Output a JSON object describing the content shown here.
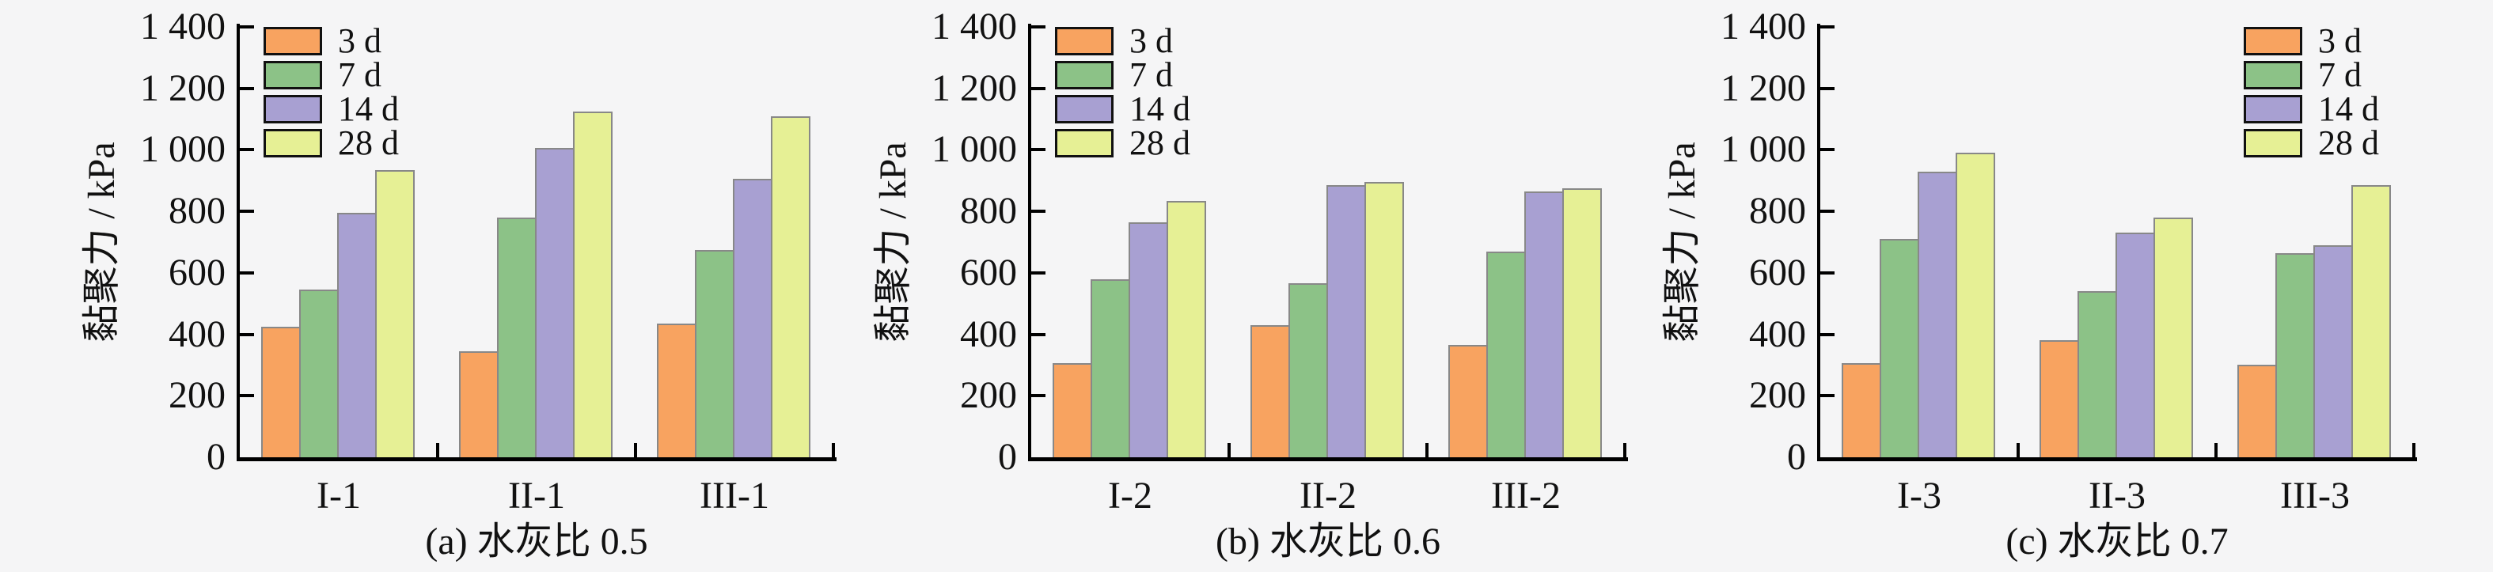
{
  "figure": {
    "background": "#f5f5f6",
    "text_color": "#111111",
    "axis_color": "#000000",
    "bar_border_color": "#888888",
    "legend_border_color": "#111111"
  },
  "chart_data": [
    {
      "type": "bar",
      "panel": "a",
      "caption": "(a) 水灰比 0.5",
      "ylabel": "黏聚力 / kPa",
      "ylim": [
        0,
        1400
      ],
      "ytick_step": 200,
      "ytick_labels": [
        "0",
        "200",
        "400",
        "600",
        "800",
        "1 000",
        "1 200",
        "1 400"
      ],
      "grid": false,
      "legend_position": "top-left",
      "categories": [
        "I-1",
        "II-1",
        "III-1"
      ],
      "series": [
        {
          "name": "3 d",
          "color": "#f8a360",
          "values": [
            425,
            345,
            435
          ]
        },
        {
          "name": "7 d",
          "color": "#8cc287",
          "values": [
            545,
            780,
            675
          ]
        },
        {
          "name": "14 d",
          "color": "#a8a0d2",
          "values": [
            795,
            1005,
            905
          ]
        },
        {
          "name": "28 d",
          "color": "#e6f095",
          "values": [
            935,
            1125,
            1110
          ]
        }
      ]
    },
    {
      "type": "bar",
      "panel": "b",
      "caption": "(b) 水灰比 0.6",
      "ylabel": "黏聚力 / kPa",
      "ylim": [
        0,
        1400
      ],
      "ytick_step": 200,
      "ytick_labels": [
        "0",
        "200",
        "400",
        "600",
        "800",
        "1 000",
        "1 200",
        "1 400"
      ],
      "grid": false,
      "legend_position": "top-left",
      "categories": [
        "I-2",
        "II-2",
        "III-2"
      ],
      "series": [
        {
          "name": "3 d",
          "color": "#f8a360",
          "values": [
            305,
            430,
            365
          ]
        },
        {
          "name": "7 d",
          "color": "#8cc287",
          "values": [
            580,
            565,
            670
          ]
        },
        {
          "name": "14 d",
          "color": "#a8a0d2",
          "values": [
            765,
            885,
            865
          ]
        },
        {
          "name": "28 d",
          "color": "#e6f095",
          "values": [
            835,
            895,
            875
          ]
        }
      ]
    },
    {
      "type": "bar",
      "panel": "c",
      "caption": "(c) 水灰比 0.7",
      "ylabel": "黏聚力 / kPa",
      "ylim": [
        0,
        1400
      ],
      "ytick_step": 200,
      "ytick_labels": [
        "0",
        "200",
        "400",
        "600",
        "800",
        "1 000",
        "1 200",
        "1 400"
      ],
      "grid": false,
      "legend_position": "top-right",
      "categories": [
        "I-3",
        "II-3",
        "III-3"
      ],
      "series": [
        {
          "name": "3 d",
          "color": "#f8a360",
          "values": [
            305,
            380,
            300
          ]
        },
        {
          "name": "7 d",
          "color": "#8cc287",
          "values": [
            710,
            540,
            665
          ]
        },
        {
          "name": "14 d",
          "color": "#a8a0d2",
          "values": [
            930,
            730,
            690
          ]
        },
        {
          "name": "28 d",
          "color": "#e6f095",
          "values": [
            990,
            780,
            885
          ]
        }
      ]
    }
  ]
}
